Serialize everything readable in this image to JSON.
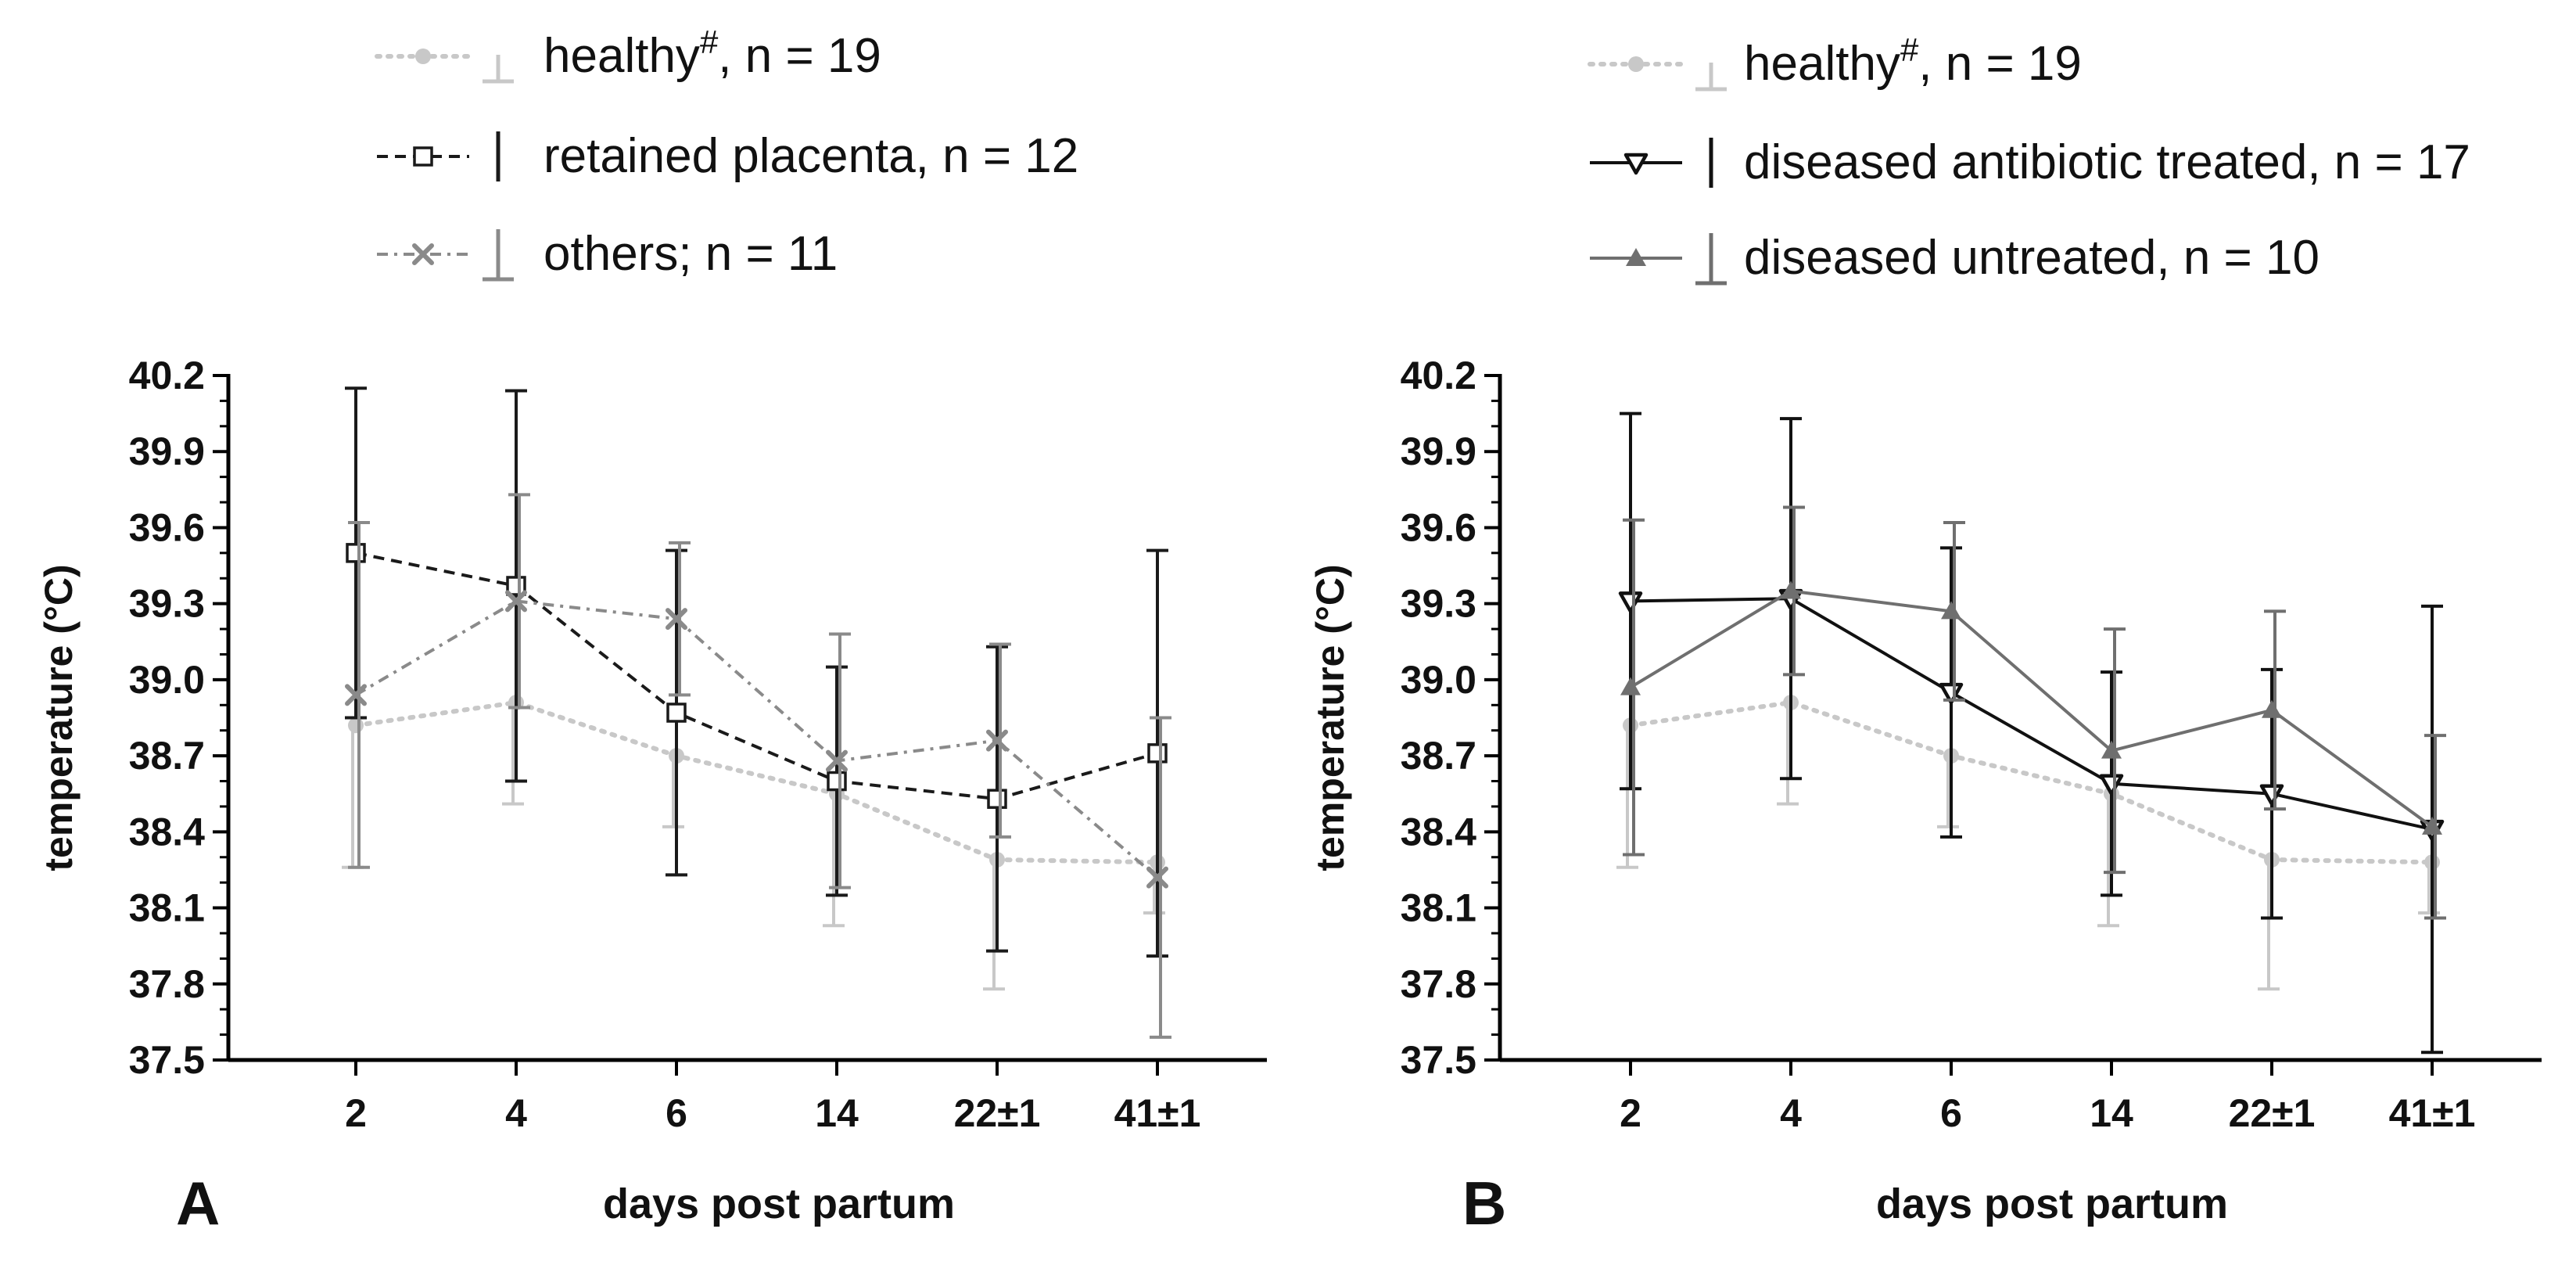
{
  "figure": {
    "panels": [
      "A",
      "B"
    ]
  },
  "chart_data": [
    {
      "panel": "A",
      "type": "line",
      "xlabel": "days post partum",
      "ylabel": "temperature (°C)",
      "categories": [
        "2",
        "4",
        "6",
        "14",
        "22±1",
        "41±1"
      ],
      "ylim": [
        37.5,
        40.2
      ],
      "yticks": [
        "37.5",
        "37.8",
        "38.1",
        "38.4",
        "38.7",
        "39.0",
        "39.3",
        "39.6",
        "39.9",
        "40.2"
      ],
      "grid": false,
      "legend_position": "top",
      "series": [
        {
          "key": "healthy",
          "label": "healthy",
          "label_sup": "#",
          "label_rest": ", n = 19",
          "color": "#c8c8c8",
          "marker": "circle",
          "line": "dotted",
          "errorbar_side": "down",
          "values": [
            38.82,
            38.91,
            38.7,
            38.55,
            38.29,
            38.28
          ],
          "errors": [
            0.56,
            0.4,
            0.28,
            0.52,
            0.51,
            0.2
          ]
        },
        {
          "key": "retained-placenta",
          "label": "retained placenta, n = 12",
          "color": "#1a1a1a",
          "marker": "square-open",
          "line": "dashed",
          "errorbar_side": "both",
          "values": [
            39.5,
            39.37,
            38.87,
            38.6,
            38.53,
            38.71
          ],
          "errors": [
            0.65,
            0.77,
            0.64,
            0.45,
            0.6,
            0.8
          ]
        },
        {
          "key": "others",
          "label": "others; n = 11",
          "color": "#8a8a8a",
          "marker": "x",
          "line": "dashdot",
          "errorbar_side": "both",
          "values": [
            38.94,
            39.31,
            39.24,
            38.68,
            38.76,
            38.22
          ],
          "errors": [
            0.68,
            0.42,
            0.3,
            0.5,
            0.38,
            0.63
          ]
        }
      ]
    },
    {
      "panel": "B",
      "type": "line",
      "xlabel": "days post partum",
      "ylabel": "temperature (°C)",
      "categories": [
        "2",
        "4",
        "6",
        "14",
        "22±1",
        "41±1"
      ],
      "ylim": [
        37.5,
        40.2
      ],
      "yticks": [
        "37.5",
        "37.8",
        "38.1",
        "38.4",
        "38.7",
        "39.0",
        "39.3",
        "39.6",
        "39.9",
        "40.2"
      ],
      "grid": false,
      "legend_position": "top",
      "series": [
        {
          "key": "healthy",
          "label": "healthy",
          "label_sup": "#",
          "label_rest": ", n = 19",
          "color": "#c8c8c8",
          "marker": "circle",
          "line": "dotted",
          "errorbar_side": "down",
          "values": [
            38.82,
            38.91,
            38.7,
            38.55,
            38.29,
            38.28
          ],
          "errors": [
            0.56,
            0.4,
            0.28,
            0.52,
            0.51,
            0.2
          ]
        },
        {
          "key": "diseased-antibiotic-treated",
          "label": "diseased antibiotic treated, n = 17",
          "color": "#111111",
          "marker": "triangle-down-open",
          "line": "solid",
          "errorbar_side": "both",
          "values": [
            39.31,
            39.32,
            38.95,
            38.59,
            38.55,
            38.41
          ],
          "errors": [
            0.74,
            0.71,
            0.57,
            0.44,
            0.49,
            0.88
          ]
        },
        {
          "key": "diseased-untreated",
          "label": "diseased untreated, n = 10",
          "color": "#6f6f6f",
          "marker": "triangle-up",
          "line": "solid",
          "errorbar_side": "both",
          "values": [
            38.97,
            39.35,
            39.27,
            38.72,
            38.88,
            38.42
          ],
          "errors": [
            0.66,
            0.33,
            0.35,
            0.48,
            0.39,
            0.36
          ]
        }
      ]
    }
  ]
}
